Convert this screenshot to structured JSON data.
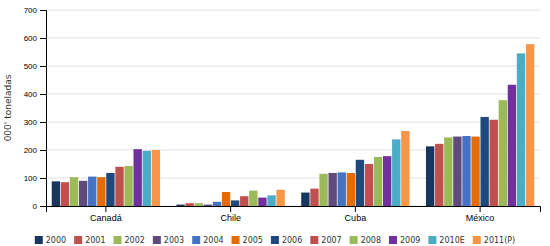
{
  "chart_data": {
    "type": "bar",
    "categories": [
      "Canadá",
      "Chile",
      "Cuba",
      "México"
    ],
    "series": [
      {
        "name": "2000",
        "color": "#17375E",
        "values": [
          88,
          5,
          48,
          213
        ]
      },
      {
        "name": "2001",
        "color": "#C0504D",
        "values": [
          85,
          10,
          62,
          222
        ]
      },
      {
        "name": "2002",
        "color": "#9BBB59",
        "values": [
          103,
          10,
          115,
          245
        ]
      },
      {
        "name": "2003",
        "color": "#604A7B",
        "values": [
          90,
          5,
          118,
          248
        ]
      },
      {
        "name": "2004",
        "color": "#4472C4",
        "values": [
          105,
          15,
          120,
          250
        ]
      },
      {
        "name": "2005",
        "color": "#E36C09",
        "values": [
          103,
          50,
          118,
          248
        ]
      },
      {
        "name": "2006",
        "color": "#1F497D",
        "values": [
          118,
          20,
          165,
          318
        ]
      },
      {
        "name": "2007",
        "color": "#C0504D",
        "values": [
          140,
          35,
          150,
          308
        ]
      },
      {
        "name": "2008",
        "color": "#9BBB59",
        "values": [
          143,
          55,
          175,
          378
        ]
      },
      {
        "name": "2009",
        "color": "#7030A0",
        "values": [
          203,
          30,
          178,
          433
        ]
      },
      {
        "name": "2010E",
        "color": "#4BACC6",
        "values": [
          197,
          38,
          238,
          545
        ]
      },
      {
        "name": "2011(P)",
        "color": "#F79646",
        "values": [
          200,
          58,
          268,
          578
        ]
      }
    ],
    "ylabel": "000' toneladas",
    "ylim": [
      0,
      700
    ],
    "yticks": [
      0,
      100,
      200,
      300,
      400,
      500,
      600,
      700
    ],
    "grid": true,
    "legend": "bottom"
  }
}
